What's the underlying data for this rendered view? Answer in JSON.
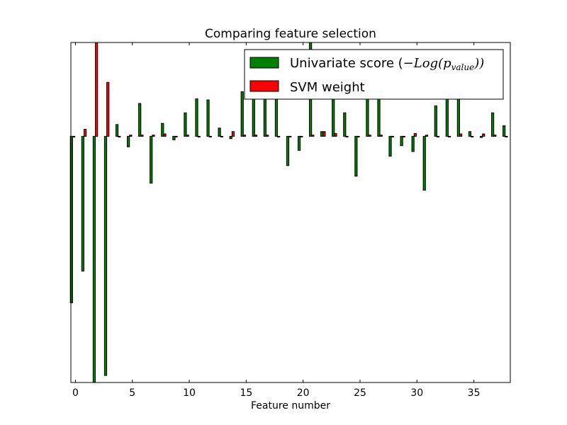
{
  "chart_data": {
    "type": "bar",
    "title": "Comparing feature selection",
    "xlabel": "Feature number",
    "ylabel": "",
    "xlim": [
      -0.4,
      38.2
    ],
    "ylim": [
      -1.05,
      0.4
    ],
    "xticks": [
      0,
      5,
      10,
      15,
      20,
      25,
      30,
      35
    ],
    "xtick_labels": [
      "0",
      "5",
      "10",
      "15",
      "20",
      "25",
      "30",
      "35"
    ],
    "yticks_shown": false,
    "grid": false,
    "legend_location": "top-right",
    "bar_width": 0.2,
    "series_offsets": [
      -0.35,
      -0.15
    ],
    "colors": {
      "univariate": "#008000",
      "svm": "#ff0000",
      "edge": "#000000"
    },
    "x": [
      0,
      1,
      2,
      3,
      4,
      5,
      6,
      7,
      8,
      9,
      10,
      11,
      12,
      13,
      14,
      15,
      16,
      17,
      18,
      19,
      20,
      21,
      22,
      23,
      24,
      25,
      26,
      27,
      28,
      29,
      30,
      31,
      32,
      33,
      34,
      35,
      36,
      37,
      38
    ],
    "series": [
      {
        "name": "Univariate score",
        "legend_label_prefix": "Univariate score (",
        "legend_label_math": "−Log(p",
        "legend_label_subscript": "value",
        "legend_label_suffix": "))",
        "color": "#008000",
        "values": [
          -0.71,
          -0.575,
          -1.05,
          -1.02,
          0.05,
          -0.045,
          0.14,
          -0.2,
          0.055,
          -0.015,
          0.1,
          0.16,
          0.155,
          0.035,
          -0.01,
          0.19,
          0.16,
          0.17,
          0.17,
          -0.125,
          -0.06,
          0.4,
          0.02,
          0.17,
          0.1,
          -0.17,
          0.18,
          0.16,
          -0.085,
          -0.04,
          -0.065,
          -0.23,
          0.13,
          0.17,
          0.18,
          0.02,
          -0.005,
          0.1,
          0.045
        ]
      },
      {
        "name": "SVM weight",
        "color": "#ff0000",
        "values": [
          0.0,
          0.03,
          0.4,
          0.23,
          0.0,
          0.005,
          0.005,
          0.005,
          0.01,
          0.0,
          0.005,
          0.0,
          0.0,
          0.0,
          0.02,
          0.005,
          0.005,
          0.005,
          0.0,
          0.0,
          0.0,
          0.005,
          0.02,
          0.012,
          0.0,
          0.0,
          0.005,
          0.005,
          0.0,
          0.0,
          0.012,
          0.005,
          0.0,
          0.0,
          0.01,
          0.0,
          0.01,
          0.005,
          0.0
        ]
      }
    ]
  }
}
